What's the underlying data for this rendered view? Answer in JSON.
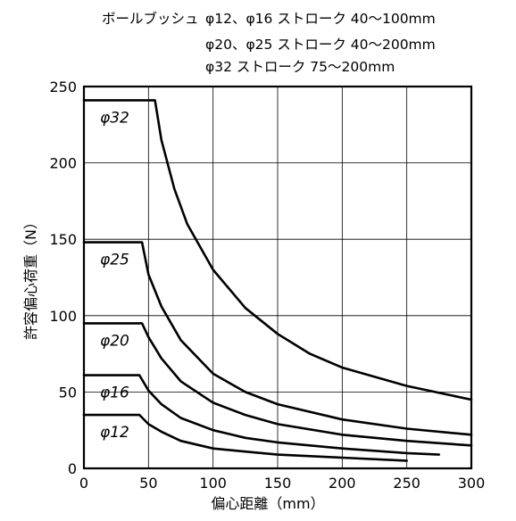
{
  "header": {
    "label": "ボールブッシュ",
    "lines": [
      "φ12、φ16 ストローク 40〜100mm",
      "φ20、φ25 ストローク 40〜200mm",
      "φ32 ストローク 75〜200mm"
    ]
  },
  "chart_data": {
    "type": "line",
    "title": "",
    "xlabel": "偏心距離（mm）",
    "ylabel": "許容偏心荷重（N）",
    "xlim": [
      0,
      300
    ],
    "ylim": [
      0,
      250
    ],
    "x_ticks": [
      "0",
      "50",
      "100",
      "150",
      "200",
      "250",
      "300"
    ],
    "y_ticks": [
      "0",
      "50",
      "100",
      "150",
      "200",
      "250"
    ],
    "grid": true,
    "series": [
      {
        "name": "φ32",
        "x": [
          0,
          55,
          60,
          70,
          80,
          100,
          125,
          150,
          175,
          200,
          250,
          300
        ],
        "y": [
          241,
          241,
          215,
          183,
          160,
          130,
          105,
          88,
          75,
          66,
          54,
          45
        ]
      },
      {
        "name": "φ25",
        "x": [
          0,
          45,
          50,
          60,
          75,
          100,
          125,
          150,
          200,
          250,
          300
        ],
        "y": [
          148,
          148,
          127,
          106,
          84,
          62,
          50,
          42,
          32,
          26,
          22
        ]
      },
      {
        "name": "φ20",
        "x": [
          0,
          45,
          50,
          60,
          75,
          100,
          125,
          150,
          200,
          250,
          300
        ],
        "y": [
          95,
          95,
          86,
          72,
          57,
          43,
          35,
          29,
          22,
          18,
          15
        ]
      },
      {
        "name": "φ16",
        "x": [
          0,
          43,
          50,
          60,
          75,
          100,
          125,
          150,
          200,
          250,
          275
        ],
        "y": [
          61,
          61,
          51,
          42,
          33,
          25,
          20,
          17,
          13,
          10,
          9
        ]
      },
      {
        "name": "φ12",
        "x": [
          0,
          43,
          50,
          60,
          75,
          100,
          125,
          150,
          200,
          250
        ],
        "y": [
          35,
          35,
          29,
          24,
          18,
          13,
          11,
          9,
          7,
          5
        ]
      }
    ]
  }
}
